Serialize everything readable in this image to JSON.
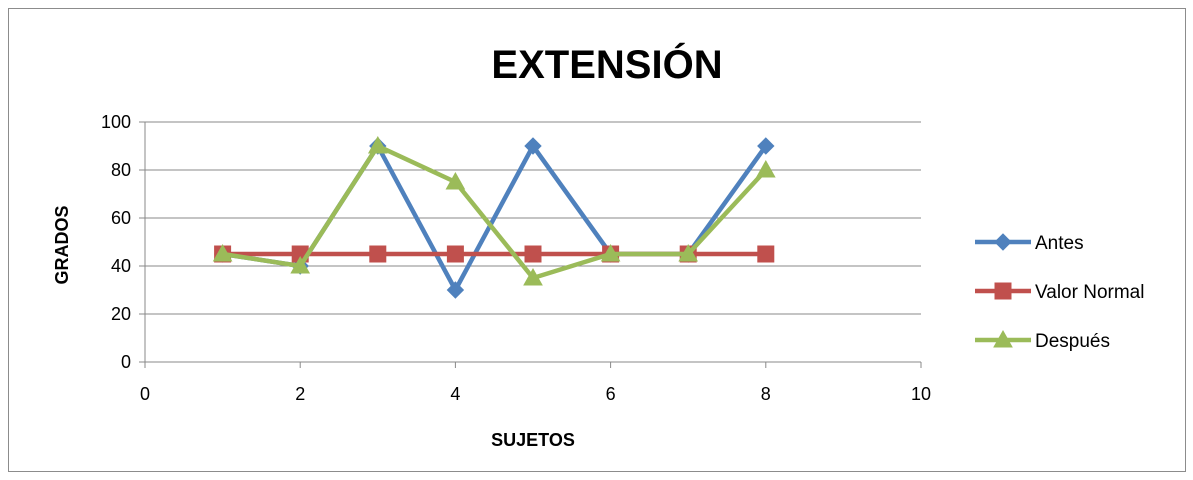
{
  "chart_data": {
    "type": "scatter",
    "title": "EXTENSIÓN",
    "xlabel": "SUJETOS",
    "ylabel": "GRADOS",
    "xlim": [
      0,
      10
    ],
    "ylim": [
      0,
      100
    ],
    "xticks": [
      0,
      2,
      4,
      6,
      8,
      10
    ],
    "yticks": [
      0,
      20,
      40,
      60,
      80,
      100
    ],
    "grid": "horizontal major gridlines",
    "legend_position": "right",
    "series": [
      {
        "name": "Antes",
        "color": "#4F81BD",
        "marker": "diamond",
        "x": [
          1,
          2,
          3,
          4,
          5,
          6,
          7,
          8
        ],
        "y": [
          45,
          40,
          90,
          30,
          90,
          45,
          45,
          90
        ]
      },
      {
        "name": "Valor Normal",
        "color": "#C0504D",
        "marker": "square",
        "x": [
          1,
          2,
          3,
          4,
          5,
          6,
          7,
          8
        ],
        "y": [
          45,
          45,
          45,
          45,
          45,
          45,
          45,
          45
        ]
      },
      {
        "name": "Después",
        "color": "#9BBB59",
        "marker": "triangle",
        "x": [
          1,
          2,
          3,
          4,
          5,
          6,
          7,
          8
        ],
        "y": [
          45,
          40,
          90,
          75,
          35,
          45,
          45,
          80
        ]
      }
    ]
  }
}
